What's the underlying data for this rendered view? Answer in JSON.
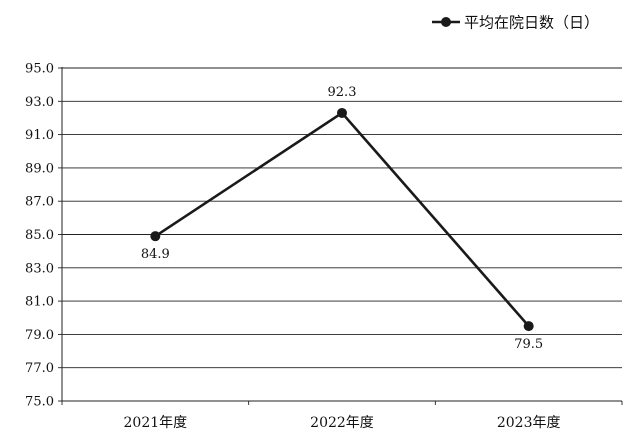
{
  "chart_data": {
    "type": "line",
    "title": "",
    "xlabel": "",
    "ylabel": "",
    "categories": [
      "2021年度",
      "2022年度",
      "2023年度"
    ],
    "series": [
      {
        "name": "平均在院日数（日）",
        "values": [
          84.9,
          92.3,
          79.5
        ],
        "data_labels": [
          "84.9",
          "92.3",
          "79.5"
        ],
        "color": "#1a1a1a"
      }
    ],
    "ylim": [
      75,
      95
    ],
    "yticks": [
      "95.0",
      "93.0",
      "91.0",
      "89.0",
      "87.0",
      "85.0",
      "83.0",
      "81.0",
      "79.0",
      "77.0",
      "75.0"
    ],
    "grid": true,
    "legend_position": "top-right"
  }
}
